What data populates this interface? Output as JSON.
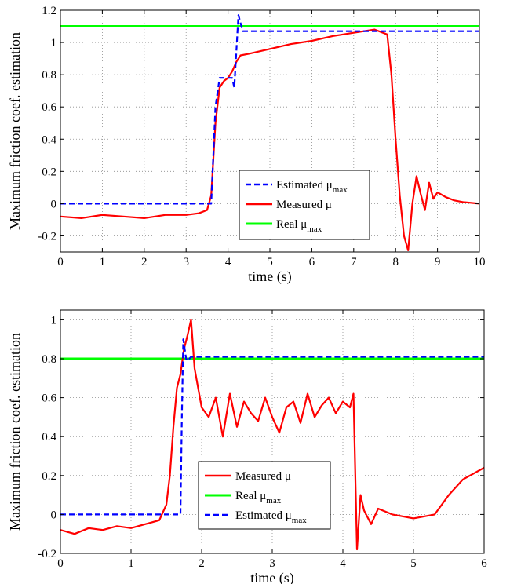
{
  "chart_data": [
    {
      "type": "line",
      "xlabel": "time (s)",
      "ylabel": "Maximum friction coef. estimation",
      "xlim": [
        0,
        10
      ],
      "ylim": [
        -0.3,
        1.2
      ],
      "xticks": [
        0,
        1,
        2,
        3,
        4,
        5,
        6,
        7,
        8,
        9,
        10
      ],
      "yticks": [
        -0.2,
        0,
        0.2,
        0.4,
        0.6,
        0.8,
        1,
        1.2
      ],
      "grid": true,
      "legend_position": "center-right",
      "legend_order": [
        "estimated",
        "measured",
        "real"
      ],
      "series": [
        {
          "key": "estimated",
          "name": "Estimated μ",
          "sub": "max",
          "color": "#0000ff",
          "style": "dashed",
          "x": [
            0,
            3.6,
            3.7,
            3.8,
            3.85,
            4.1,
            4.15,
            4.2,
            4.25,
            4.3,
            4.35,
            10
          ],
          "y": [
            0,
            0,
            0.6,
            0.78,
            0.78,
            0.78,
            0.72,
            0.95,
            1.17,
            1.12,
            1.07,
            1.07
          ]
        },
        {
          "key": "measured",
          "name": "Measured μ",
          "color": "#ff0000",
          "style": "solid",
          "x": [
            0,
            0.5,
            1,
            1.5,
            2,
            2.5,
            3,
            3.3,
            3.5,
            3.6,
            3.7,
            3.8,
            3.9,
            4.0,
            4.1,
            4.2,
            4.3,
            4.5,
            5,
            5.5,
            6,
            6.5,
            7,
            7.5,
            7.8,
            7.9,
            8.0,
            8.1,
            8.2,
            8.3,
            8.4,
            8.5,
            8.6,
            8.7,
            8.8,
            8.9,
            9.0,
            9.2,
            9.4,
            9.6,
            10
          ],
          "y": [
            -0.08,
            -0.09,
            -0.07,
            -0.08,
            -0.09,
            -0.07,
            -0.07,
            -0.06,
            -0.04,
            0.05,
            0.5,
            0.72,
            0.76,
            0.78,
            0.82,
            0.88,
            0.92,
            0.93,
            0.96,
            0.99,
            1.01,
            1.04,
            1.06,
            1.08,
            1.05,
            0.8,
            0.4,
            0.05,
            -0.2,
            -0.29,
            0.0,
            0.17,
            0.06,
            -0.04,
            0.13,
            0.03,
            0.07,
            0.04,
            0.02,
            0.01,
            0.0
          ]
        },
        {
          "key": "real",
          "name": "Real μ",
          "sub": "max",
          "color": "#00ff00",
          "style": "solid",
          "x": [
            0,
            10
          ],
          "y": [
            1.1,
            1.1
          ]
        }
      ]
    },
    {
      "type": "line",
      "xlabel": "time (s)",
      "ylabel": "Maximum friction coef. estimation",
      "xlim": [
        0,
        6
      ],
      "ylim": [
        -0.2,
        1.05
      ],
      "xticks": [
        0,
        1,
        2,
        3,
        4,
        5,
        6
      ],
      "yticks": [
        -0.2,
        0,
        0.2,
        0.4,
        0.6,
        0.8,
        1
      ],
      "grid": true,
      "legend_position": "bottom-center",
      "legend_order": [
        "measured",
        "real",
        "estimated"
      ],
      "series": [
        {
          "key": "estimated",
          "name": "Estimated μ",
          "sub": "max",
          "color": "#0000ff",
          "style": "dashed",
          "x": [
            0,
            1.7,
            1.72,
            1.74,
            1.76,
            1.78,
            1.8,
            1.85,
            6
          ],
          "y": [
            0,
            0,
            0.5,
            0.9,
            0.85,
            0.8,
            0.79,
            0.81,
            0.81
          ]
        },
        {
          "key": "measured",
          "name": "Measured μ",
          "color": "#ff0000",
          "style": "solid",
          "x": [
            0,
            0.2,
            0.4,
            0.6,
            0.8,
            1.0,
            1.2,
            1.4,
            1.5,
            1.55,
            1.6,
            1.65,
            1.7,
            1.75,
            1.8,
            1.85,
            1.9,
            2.0,
            2.1,
            2.2,
            2.3,
            2.4,
            2.5,
            2.6,
            2.7,
            2.8,
            2.9,
            3.0,
            3.1,
            3.2,
            3.3,
            3.4,
            3.5,
            3.6,
            3.7,
            3.8,
            3.9,
            4.0,
            4.1,
            4.15,
            4.2,
            4.25,
            4.3,
            4.4,
            4.5,
            4.7,
            5.0,
            5.3,
            5.5,
            5.7,
            6.0
          ],
          "y": [
            -0.08,
            -0.1,
            -0.07,
            -0.08,
            -0.06,
            -0.07,
            -0.05,
            -0.03,
            0.05,
            0.2,
            0.45,
            0.65,
            0.72,
            0.85,
            0.92,
            1.0,
            0.75,
            0.55,
            0.5,
            0.6,
            0.4,
            0.62,
            0.45,
            0.58,
            0.52,
            0.48,
            0.6,
            0.5,
            0.42,
            0.55,
            0.58,
            0.47,
            0.62,
            0.5,
            0.56,
            0.6,
            0.52,
            0.58,
            0.55,
            0.62,
            -0.18,
            0.1,
            0.02,
            -0.05,
            0.03,
            0.0,
            -0.02,
            0.0,
            0.1,
            0.18,
            0.24
          ]
        },
        {
          "key": "real",
          "name": "Real μ",
          "sub": "max",
          "color": "#00ff00",
          "style": "solid",
          "x": [
            0,
            6
          ],
          "y": [
            0.8,
            0.8
          ]
        }
      ]
    }
  ]
}
